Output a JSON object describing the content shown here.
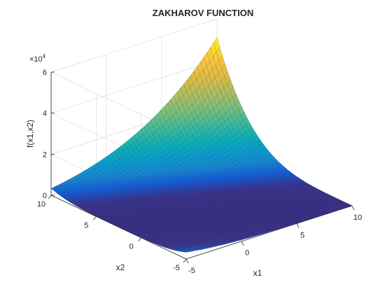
{
  "chart_data": {
    "type": "surface",
    "title": "ZAKHAROV FUNCTION",
    "xlabel": "x1",
    "ylabel": "x2",
    "zlabel": "f(x1,x2)",
    "function": "f(x1,x2) = x1^2 + x2^2 + (0.5*x1 + x2)^2 + (0.5*x1 + x2)^4",
    "xlim": [
      -5,
      10
    ],
    "ylim": [
      -5,
      10
    ],
    "zlim": [
      0,
      60000
    ],
    "xticks": [
      -5,
      0,
      5,
      10
    ],
    "yticks": [
      -5,
      0,
      5,
      10
    ],
    "zticks": [
      0,
      2,
      4,
      6
    ],
    "z_exponent_label": "×10",
    "z_exponent_power": "4",
    "grid": true,
    "colormap": "parula",
    "mesh_steps": 50
  }
}
